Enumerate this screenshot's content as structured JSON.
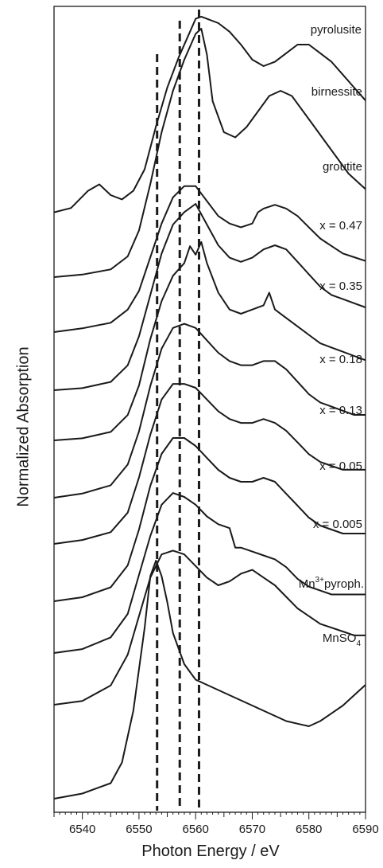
{
  "chart_data": {
    "type": "line",
    "title": "",
    "xlabel": "Photon Energy / eV",
    "ylabel": "Normalized Absorption",
    "xlim": [
      6535,
      6590
    ],
    "xticks": [
      6540,
      6550,
      6560,
      6570,
      6580,
      6590
    ],
    "yticks_shown": false,
    "stacked_offset": true,
    "grid": false,
    "reference_lines_x": [
      6553.2,
      6557.2,
      6560.6
    ],
    "series": [
      {
        "name": "pyrolusite",
        "x": [
          6535,
          6538,
          6541,
          6543,
          6545,
          6547,
          6549,
          6551,
          6553,
          6555,
          6557,
          6559,
          6560,
          6561,
          6562,
          6564,
          6566,
          6568,
          6570,
          6572,
          6574,
          6576,
          6578,
          6580,
          6582,
          6584,
          6586,
          6588,
          6590
        ],
        "y": [
          0.02,
          0.04,
          0.12,
          0.15,
          0.1,
          0.08,
          0.12,
          0.22,
          0.42,
          0.6,
          0.74,
          0.86,
          0.92,
          0.93,
          0.92,
          0.9,
          0.86,
          0.8,
          0.73,
          0.7,
          0.72,
          0.76,
          0.8,
          0.8,
          0.76,
          0.72,
          0.66,
          0.6,
          0.54
        ]
      },
      {
        "name": "birnessite",
        "x": [
          6535,
          6540,
          6545,
          6548,
          6550,
          6552,
          6554,
          6556,
          6558,
          6560,
          6561,
          6562,
          6563,
          6565,
          6567,
          6569,
          6571,
          6573,
          6575,
          6577,
          6579,
          6581,
          6583,
          6585,
          6587,
          6590
        ],
        "y": [
          0.0,
          0.01,
          0.03,
          0.08,
          0.18,
          0.36,
          0.56,
          0.72,
          0.84,
          0.94,
          0.96,
          0.86,
          0.68,
          0.56,
          0.54,
          0.58,
          0.64,
          0.7,
          0.72,
          0.7,
          0.64,
          0.58,
          0.52,
          0.46,
          0.4,
          0.34
        ]
      },
      {
        "name": "groutite",
        "x": [
          6535,
          6540,
          6545,
          6548,
          6550,
          6552,
          6554,
          6556,
          6558,
          6560,
          6562,
          6564,
          6566,
          6568,
          6570,
          6571,
          6572,
          6574,
          6576,
          6578,
          6580,
          6582,
          6584,
          6586,
          6588,
          6590
        ],
        "y": [
          0.0,
          0.02,
          0.05,
          0.12,
          0.22,
          0.4,
          0.58,
          0.72,
          0.78,
          0.78,
          0.7,
          0.62,
          0.58,
          0.56,
          0.58,
          0.64,
          0.66,
          0.68,
          0.66,
          0.62,
          0.56,
          0.5,
          0.46,
          0.42,
          0.4,
          0.38
        ]
      },
      {
        "name": "x = 0.47",
        "x": [
          6535,
          6540,
          6545,
          6548,
          6550,
          6552,
          6554,
          6556,
          6558,
          6560,
          6562,
          6564,
          6566,
          6568,
          6570,
          6572,
          6574,
          6576,
          6578,
          6580,
          6582,
          6584,
          6586,
          6588,
          6590
        ],
        "y": [
          0.0,
          0.01,
          0.04,
          0.12,
          0.26,
          0.46,
          0.66,
          0.8,
          0.86,
          0.9,
          0.8,
          0.7,
          0.64,
          0.62,
          0.64,
          0.68,
          0.7,
          0.68,
          0.62,
          0.56,
          0.5,
          0.46,
          0.44,
          0.42,
          0.4
        ]
      },
      {
        "name": "x = 0.35",
        "x": [
          6535,
          6540,
          6545,
          6548,
          6550,
          6552,
          6554,
          6556,
          6558,
          6559,
          6560,
          6561,
          6562,
          6564,
          6566,
          6568,
          6570,
          6572,
          6573,
          6574,
          6576,
          6578,
          6580,
          6582,
          6584,
          6586,
          6588,
          6590
        ],
        "y": [
          0.0,
          0.01,
          0.04,
          0.12,
          0.26,
          0.48,
          0.66,
          0.78,
          0.84,
          0.92,
          0.88,
          0.94,
          0.84,
          0.7,
          0.62,
          0.6,
          0.62,
          0.64,
          0.7,
          0.62,
          0.58,
          0.54,
          0.5,
          0.46,
          0.44,
          0.42,
          0.4,
          0.38
        ]
      },
      {
        "name": "x = 0.18",
        "x": [
          6535,
          6540,
          6545,
          6548,
          6550,
          6552,
          6554,
          6556,
          6558,
          6560,
          6562,
          6564,
          6566,
          6568,
          6570,
          6572,
          6574,
          6576,
          6578,
          6580,
          6582,
          6584,
          6586,
          6588,
          6590
        ],
        "y": [
          0.0,
          0.02,
          0.06,
          0.16,
          0.32,
          0.54,
          0.72,
          0.82,
          0.84,
          0.82,
          0.76,
          0.7,
          0.66,
          0.64,
          0.64,
          0.66,
          0.66,
          0.62,
          0.56,
          0.5,
          0.46,
          0.44,
          0.42,
          0.4,
          0.4
        ]
      },
      {
        "name": "x = 0.13",
        "x": [
          6535,
          6540,
          6545,
          6548,
          6550,
          6552,
          6554,
          6556,
          6558,
          6560,
          6562,
          6564,
          6566,
          6568,
          6570,
          6572,
          6574,
          6576,
          6578,
          6580,
          6582,
          6584,
          6586,
          6588,
          6590
        ],
        "y": [
          0.0,
          0.02,
          0.06,
          0.16,
          0.34,
          0.56,
          0.74,
          0.82,
          0.82,
          0.8,
          0.74,
          0.68,
          0.64,
          0.62,
          0.62,
          0.64,
          0.62,
          0.58,
          0.52,
          0.46,
          0.42,
          0.4,
          0.38,
          0.38,
          0.38
        ]
      },
      {
        "name": "x = 0.05",
        "x": [
          6535,
          6540,
          6545,
          6548,
          6550,
          6552,
          6554,
          6556,
          6558,
          6560,
          6562,
          6564,
          6566,
          6568,
          6570,
          6572,
          6574,
          6576,
          6578,
          6580,
          6582,
          6584,
          6586,
          6588,
          6590
        ],
        "y": [
          0.0,
          0.02,
          0.07,
          0.18,
          0.36,
          0.58,
          0.74,
          0.82,
          0.82,
          0.78,
          0.72,
          0.66,
          0.62,
          0.6,
          0.6,
          0.62,
          0.6,
          0.54,
          0.48,
          0.42,
          0.38,
          0.36,
          0.34,
          0.34,
          0.34
        ]
      },
      {
        "name": "x = 0.005",
        "x": [
          6535,
          6540,
          6545,
          6548,
          6550,
          6552,
          6554,
          6556,
          6558,
          6560,
          6562,
          6564,
          6566,
          6567,
          6568,
          6570,
          6572,
          6574,
          6576,
          6578,
          6580,
          6582,
          6584,
          6586,
          6588,
          6590
        ],
        "y": [
          0.0,
          0.02,
          0.08,
          0.2,
          0.4,
          0.6,
          0.76,
          0.82,
          0.8,
          0.76,
          0.7,
          0.66,
          0.64,
          0.54,
          0.54,
          0.52,
          0.5,
          0.48,
          0.44,
          0.38,
          0.34,
          0.32,
          0.3,
          0.3,
          0.3,
          0.3
        ]
      },
      {
        "name": "Mn3+ pyroph.",
        "x": [
          6535,
          6540,
          6545,
          6548,
          6550,
          6552,
          6554,
          6556,
          6558,
          6560,
          6562,
          6564,
          6566,
          6568,
          6570,
          6572,
          6574,
          6576,
          6578,
          6580,
          6582,
          6584,
          6586,
          6588,
          6590
        ],
        "y": [
          0.0,
          0.02,
          0.1,
          0.26,
          0.46,
          0.66,
          0.78,
          0.8,
          0.78,
          0.72,
          0.66,
          0.62,
          0.64,
          0.68,
          0.7,
          0.66,
          0.62,
          0.56,
          0.5,
          0.46,
          0.42,
          0.4,
          0.38,
          0.36,
          0.36
        ]
      },
      {
        "name": "MnSO4",
        "x": [
          6535,
          6540,
          6545,
          6547,
          6549,
          6551,
          6552,
          6553,
          6554,
          6555,
          6556,
          6558,
          6560,
          6562,
          6564,
          6566,
          6568,
          6570,
          6572,
          6574,
          6576,
          6578,
          6580,
          6582,
          6584,
          6586,
          6588,
          6590
        ],
        "y": [
          0.0,
          0.02,
          0.06,
          0.14,
          0.34,
          0.66,
          0.86,
          0.92,
          0.86,
          0.76,
          0.64,
          0.52,
          0.46,
          0.44,
          0.42,
          0.4,
          0.38,
          0.36,
          0.34,
          0.32,
          0.3,
          0.29,
          0.28,
          0.3,
          0.33,
          0.36,
          0.4,
          0.44
        ]
      }
    ],
    "labels": [
      {
        "text": "pyrolusite"
      },
      {
        "text": "birnessite"
      },
      {
        "text": "groutite"
      },
      {
        "text": "x = 0.47"
      },
      {
        "text": "x = 0.35"
      },
      {
        "text": "x = 0.18"
      },
      {
        "text": "x = 0.13"
      },
      {
        "text": "x = 0.05"
      },
      {
        "text": "x = 0.005"
      },
      {
        "text": "Mn3+pyroph.",
        "base": "Mn",
        "sup": "3+",
        "rest": "pyroph."
      },
      {
        "text": "MnSO4",
        "base": "MnSO",
        "sub": "4"
      }
    ]
  }
}
